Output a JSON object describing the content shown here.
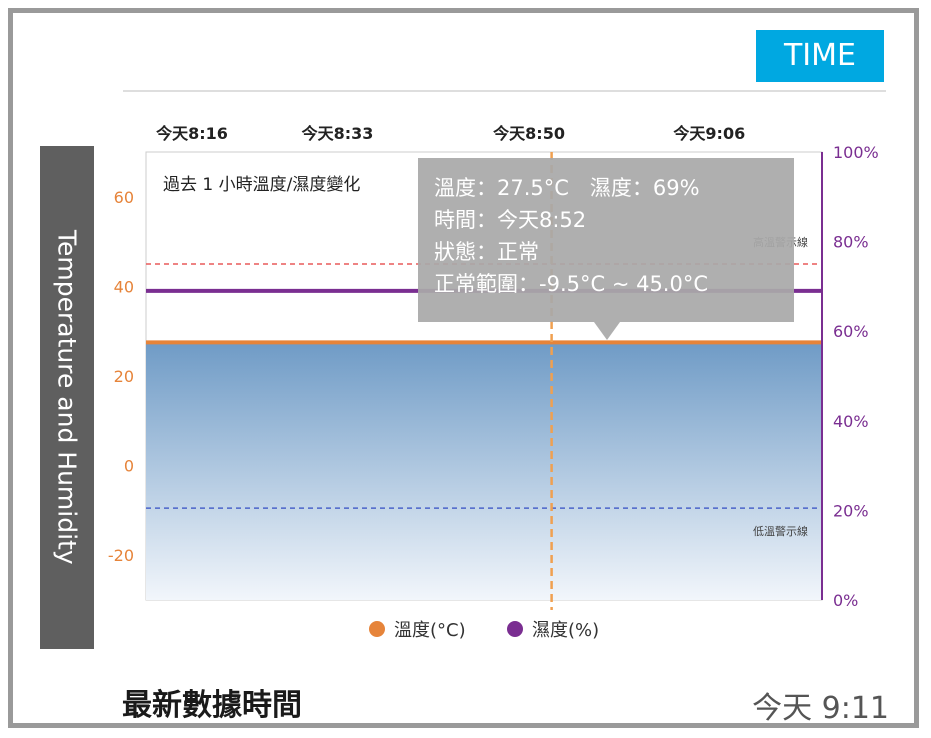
{
  "header": {
    "time_badge": "TIME"
  },
  "side_label": "Temperature and Humidity",
  "tooltip": {
    "line1": "溫度：27.5°C　濕度：69%",
    "line2": "時間：今天8:52",
    "line3": "狀態：正常",
    "line4": "正常範圍：-9.5°C ~ 45.0°C"
  },
  "footer": {
    "label": "最新數據時間",
    "value": "今天 9:11"
  },
  "colors": {
    "temperature": "#e6843a",
    "humidity": "#7a2e91",
    "accent": "#00a8e1"
  },
  "chart_data": {
    "type": "area",
    "title": "過去 1 小時溫度/濕度變化",
    "x_ticks": [
      "今天8:16",
      "今天8:33",
      "今天8:50",
      "今天9:06"
    ],
    "x_range_minutes": [
      0,
      60
    ],
    "y_left": {
      "ticks": [
        "60",
        "40",
        "20",
        "0",
        "-20"
      ],
      "range": [
        -30,
        70
      ]
    },
    "y_right": {
      "ticks": [
        "100%",
        "80%",
        "60%",
        "40%",
        "20%",
        "0%"
      ],
      "range": [
        0,
        100
      ]
    },
    "series": [
      {
        "name": "溫度(°C)",
        "axis": "left",
        "color": "#e6843a",
        "values": [
          27.5,
          27.5,
          27.5,
          27.5,
          27.5
        ]
      },
      {
        "name": "濕度(%)",
        "axis": "right",
        "color": "#7a2e91",
        "values": [
          69,
          69,
          69,
          69,
          69
        ]
      }
    ],
    "thresholds": [
      {
        "label": "高溫警示線",
        "value": 45.0,
        "color": "#e85a5a"
      },
      {
        "label": "低溫警示線",
        "value": -9.5,
        "color": "#4a63c9"
      }
    ],
    "cursor": {
      "time": "今天8:52"
    },
    "legend": "bottom-center"
  }
}
